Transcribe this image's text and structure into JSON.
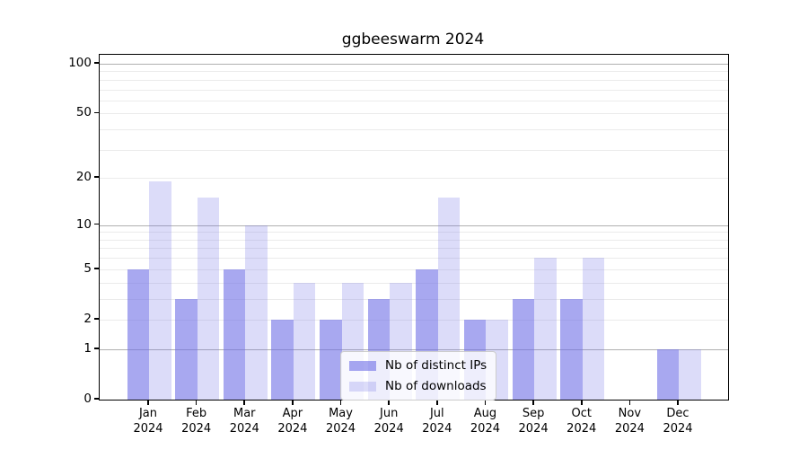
{
  "title": "ggbeeswarm 2024",
  "chart_data": {
    "type": "bar",
    "title": "ggbeeswarm 2024",
    "categories": [
      "Jan 2024",
      "Feb 2024",
      "Mar 2024",
      "Apr 2024",
      "May 2024",
      "Jun 2024",
      "Jul 2024",
      "Aug 2024",
      "Sep 2024",
      "Oct 2024",
      "Nov 2024",
      "Dec 2024"
    ],
    "series": [
      {
        "name": "Nb of distinct IPs",
        "values": [
          5,
          3,
          5,
          2,
          2,
          3,
          5,
          2,
          3,
          3,
          0,
          1
        ],
        "color": "rgba(110,110,230,0.60)"
      },
      {
        "name": "Nb of downloads",
        "values": [
          19,
          15,
          10,
          4,
          4,
          4,
          15,
          2,
          6,
          6,
          0,
          1
        ],
        "color": "rgba(110,110,230,0.24)"
      }
    ],
    "xlabel": "",
    "ylabel": "",
    "yscale": "log1p",
    "ylim": [
      0,
      113
    ],
    "yticks": [
      0,
      1,
      2,
      5,
      10,
      20,
      50,
      100
    ],
    "minor_gridlines": [
      2,
      3,
      4,
      5,
      6,
      7,
      8,
      9,
      20,
      30,
      40,
      50,
      60,
      70,
      80,
      90
    ],
    "major_gridlines": [
      1,
      10,
      100
    ],
    "grid": "horizontal",
    "legend_position": "inside lower center",
    "colors": {
      "bars_base": "#6e6ee6",
      "major_grid": "#b0b0b0",
      "minor_grid": "#ebebeb",
      "spine": "#000000",
      "legend_border": "#cccccc"
    }
  },
  "legend": {
    "items": [
      {
        "label": "Nb of distinct IPs"
      },
      {
        "label": "Nb of downloads"
      }
    ]
  }
}
